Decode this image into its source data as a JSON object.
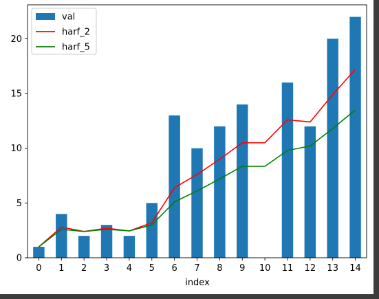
{
  "chart_data": {
    "type": "bar",
    "xlabel": "index",
    "ylabel": "",
    "title": "",
    "categories": [
      "0",
      "1",
      "2",
      "3",
      "4",
      "5",
      "6",
      "7",
      "8",
      "9",
      "10",
      "11",
      "12",
      "13",
      "14"
    ],
    "ylim": [
      0,
      23.1
    ],
    "yticks": [
      0,
      5,
      10,
      15,
      20
    ],
    "bars": {
      "name": "val",
      "color": "#1f77b4",
      "values": [
        1,
        4,
        2,
        3,
        2,
        5,
        13,
        10,
        12,
        14,
        0,
        16,
        12,
        20,
        22
      ]
    },
    "series": [
      {
        "name": "harf_2",
        "color": "#ff0000",
        "values": [
          1.0,
          2.8,
          2.4,
          2.7,
          2.45,
          3.2,
          6.4,
          7.6,
          9.0,
          10.5,
          10.5,
          12.6,
          12.4,
          14.9,
          17.2
        ]
      },
      {
        "name": "harf_5",
        "color": "#008000",
        "values": [
          1.0,
          2.6,
          2.4,
          2.6,
          2.45,
          3.0,
          5.1,
          6.1,
          7.2,
          8.35,
          8.35,
          9.8,
          10.2,
          11.8,
          13.5
        ]
      }
    ],
    "legend": {
      "placement": "upper-left"
    },
    "grid": false
  }
}
